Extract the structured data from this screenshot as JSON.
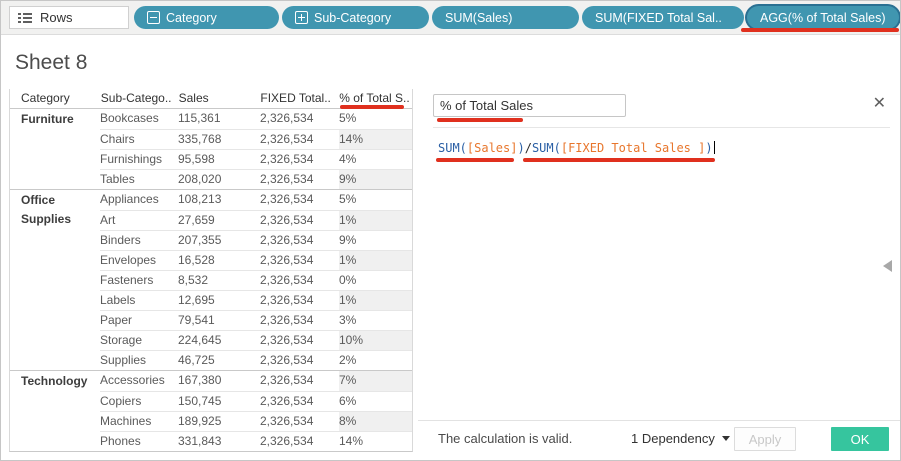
{
  "shelf": {
    "label": "Rows",
    "pills": [
      {
        "label": "Category",
        "icon": "collapse-minus-icon"
      },
      {
        "label": "Sub-Category",
        "icon": "expand-plus-icon"
      },
      {
        "label": "SUM(Sales)"
      },
      {
        "label": "SUM(FIXED Total Sal.."
      },
      {
        "label": "AGG(% of Total Sales)",
        "selected": true
      }
    ]
  },
  "sheet": {
    "title": "Sheet 8"
  },
  "table": {
    "headers": [
      "Category",
      "Sub-Catego..",
      "Sales",
      "FIXED Total..",
      "% of Total S.."
    ],
    "groups": [
      {
        "category": "Furniture",
        "rows": [
          {
            "sub": "Bookcases",
            "sales": "115,361",
            "fixed": "2,326,534",
            "pct": "5%"
          },
          {
            "sub": "Chairs",
            "sales": "335,768",
            "fixed": "2,326,534",
            "pct": "14%"
          },
          {
            "sub": "Furnishings",
            "sales": "95,598",
            "fixed": "2,326,534",
            "pct": "4%"
          },
          {
            "sub": "Tables",
            "sales": "208,020",
            "fixed": "2,326,534",
            "pct": "9%"
          }
        ]
      },
      {
        "category": "Office Supplies",
        "rows": [
          {
            "sub": "Appliances",
            "sales": "108,213",
            "fixed": "2,326,534",
            "pct": "5%"
          },
          {
            "sub": "Art",
            "sales": "27,659",
            "fixed": "2,326,534",
            "pct": "1%"
          },
          {
            "sub": "Binders",
            "sales": "207,355",
            "fixed": "2,326,534",
            "pct": "9%"
          },
          {
            "sub": "Envelopes",
            "sales": "16,528",
            "fixed": "2,326,534",
            "pct": "1%"
          },
          {
            "sub": "Fasteners",
            "sales": "8,532",
            "fixed": "2,326,534",
            "pct": "0%"
          },
          {
            "sub": "Labels",
            "sales": "12,695",
            "fixed": "2,326,534",
            "pct": "1%"
          },
          {
            "sub": "Paper",
            "sales": "79,541",
            "fixed": "2,326,534",
            "pct": "3%"
          },
          {
            "sub": "Storage",
            "sales": "224,645",
            "fixed": "2,326,534",
            "pct": "10%"
          },
          {
            "sub": "Supplies",
            "sales": "46,725",
            "fixed": "2,326,534",
            "pct": "2%"
          }
        ]
      },
      {
        "category": "Technology",
        "rows": [
          {
            "sub": "Accessories",
            "sales": "167,380",
            "fixed": "2,326,534",
            "pct": "7%"
          },
          {
            "sub": "Copiers",
            "sales": "150,745",
            "fixed": "2,326,534",
            "pct": "6%"
          },
          {
            "sub": "Machines",
            "sales": "189,925",
            "fixed": "2,326,534",
            "pct": "8%"
          },
          {
            "sub": "Phones",
            "sales": "331,843",
            "fixed": "2,326,534",
            "pct": "14%"
          }
        ]
      }
    ]
  },
  "dialog": {
    "name_value": "% of Total Sales",
    "close_glyph": "✕",
    "formula_tokens": [
      {
        "text": "SUM(",
        "type": "function"
      },
      {
        "text": "[Sales]",
        "type": "field"
      },
      {
        "text": ")",
        "type": "function"
      },
      {
        "text": "/",
        "type": "operator"
      },
      {
        "text": "SUM(",
        "type": "function"
      },
      {
        "text": "[FIXED Total Sales ]",
        "type": "field"
      },
      {
        "text": ")",
        "type": "function"
      }
    ],
    "status": "The calculation is valid.",
    "dependency_label": "1 Dependency",
    "apply_label": "Apply",
    "ok_label": "OK"
  },
  "colors": {
    "pill": "#4096b0",
    "pill_selected_border": "#2a7092",
    "function": "#2a5fa5",
    "field": "#e8762c",
    "ok_button": "#36c59e",
    "annotation": "#e0301e"
  }
}
